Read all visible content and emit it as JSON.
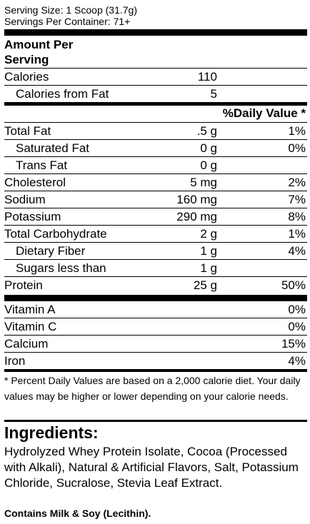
{
  "serving_size": "Serving Size: 1 Scoop (31.7g)",
  "servings_per_container": "Servings Per Container: 71+",
  "amount_per_serving_line1": "Amount Per",
  "amount_per_serving_line2": "Serving",
  "calories": {
    "label": "Calories",
    "amount": "110"
  },
  "calories_from_fat": {
    "label": "Calories from Fat",
    "amount": "5"
  },
  "daily_value_header": "%Daily Value *",
  "nutrients": [
    {
      "label": "Total Fat",
      "amount": ".5 g",
      "dv": "1%"
    },
    {
      "label": "Saturated Fat",
      "amount": "0 g",
      "dv": "0%"
    },
    {
      "label": "Trans Fat",
      "amount": "0 g",
      "dv": ""
    },
    {
      "label": "Cholesterol",
      "amount": "5 mg",
      "dv": "2%"
    },
    {
      "label": "Sodium",
      "amount": "160 mg",
      "dv": "7%"
    },
    {
      "label": "Potassium",
      "amount": "290 mg",
      "dv": "8%"
    },
    {
      "label": "Total Carbohydrate",
      "amount": "2 g",
      "dv": "1%"
    },
    {
      "label": "Dietary Fiber",
      "amount": "1 g",
      "dv": "4%"
    },
    {
      "label": "Sugars less than",
      "amount": "1 g",
      "dv": ""
    },
    {
      "label": "Protein",
      "amount": "25 g",
      "dv": "50%"
    }
  ],
  "vitamins": [
    {
      "label": "Vitamin A",
      "dv": "0%"
    },
    {
      "label": "Vitamin C",
      "dv": "0%"
    },
    {
      "label": "Calcium",
      "dv": "15%"
    },
    {
      "label": "Iron",
      "dv": "4%"
    }
  ],
  "footnote": "* Percent Daily Values are based on a 2,000 calorie diet. Your daily values may be higher or lower depending on your calorie needs.",
  "ingredients_title": "Ingredients:",
  "ingredients_text": "Hydrolyzed Whey Protein Isolate, Cocoa (Processed with Alkali), Natural & Artificial Flavors, Salt, Potassium Chloride, Sucralose, Stevia Leaf Extract.",
  "contains": "Contains Milk & Soy (Lecithin)."
}
